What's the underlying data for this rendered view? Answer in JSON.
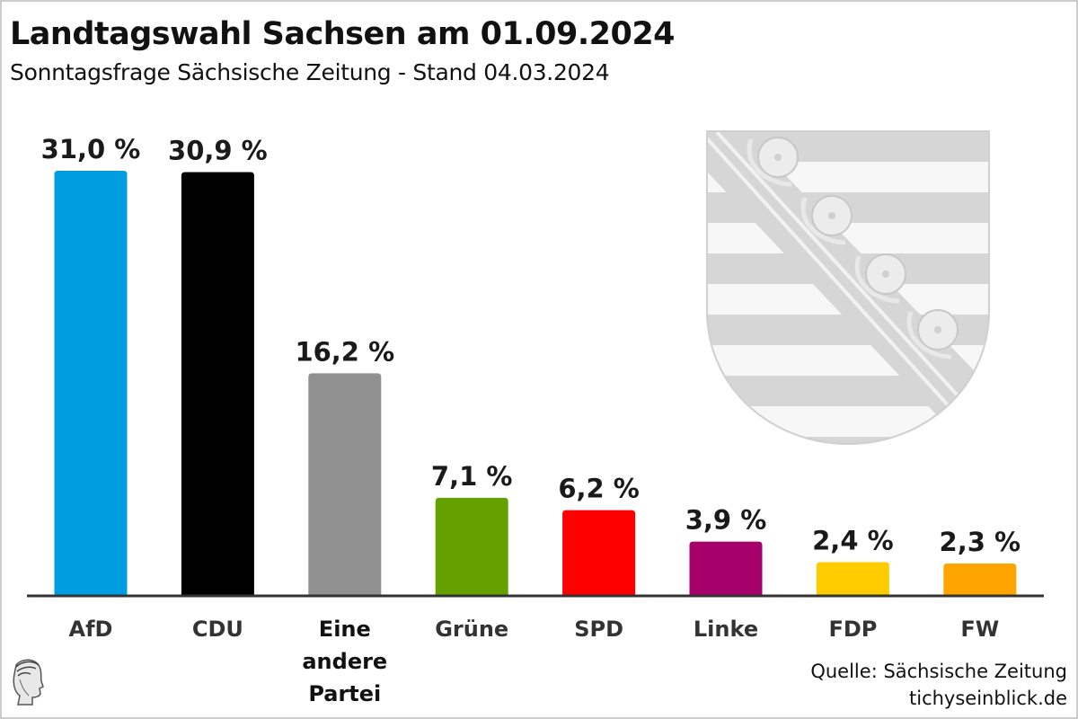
{
  "header": {
    "title": "Landtagswahl Sachsen am 01.09.2024",
    "subtitle": "Sonntagsfrage Sächsische Zeitung - Stand 04.03.2024"
  },
  "footer": {
    "source": "Quelle: Sächsische Zeitung",
    "site": "tichyseinblick.de"
  },
  "icons": {
    "crest": "saxony-coat-of-arms-icon",
    "logo": "tichys-einblick-head-logo-icon"
  },
  "chart_data": {
    "type": "bar",
    "title": "Landtagswahl Sachsen am 01.09.2024",
    "subtitle": "Sonntagsfrage Sächsische Zeitung - Stand 04.03.2024",
    "xlabel": "",
    "ylabel": "",
    "ylim": [
      0,
      31
    ],
    "grid": false,
    "categories": [
      "AfD",
      "CDU",
      "Eine andere Partei",
      "Grüne",
      "SPD",
      "Linke",
      "FDP",
      "FW"
    ],
    "category_lines": [
      [
        "AfD"
      ],
      [
        "CDU"
      ],
      [
        "Eine",
        "andere",
        "Partei"
      ],
      [
        "Grüne"
      ],
      [
        "SPD"
      ],
      [
        "Linke"
      ],
      [
        "FDP"
      ],
      [
        "FW"
      ]
    ],
    "values": [
      31.0,
      30.9,
      16.2,
      7.1,
      6.2,
      3.9,
      2.4,
      2.3
    ],
    "value_labels": [
      "31,0 %",
      "30,9 %",
      "16,2 %",
      "7,1 %",
      "6,2 %",
      "3,9 %",
      "2,4 %",
      "2,3 %"
    ],
    "colors": [
      "#009ee0",
      "#000000",
      "#909090",
      "#64a000",
      "#ff0000",
      "#a6006b",
      "#ffcc00",
      "#ffa500"
    ],
    "category_label_colors": [
      "#333333",
      "#333333",
      "#111111",
      "#333333",
      "#333333",
      "#333333",
      "#333333",
      "#333333"
    ]
  }
}
